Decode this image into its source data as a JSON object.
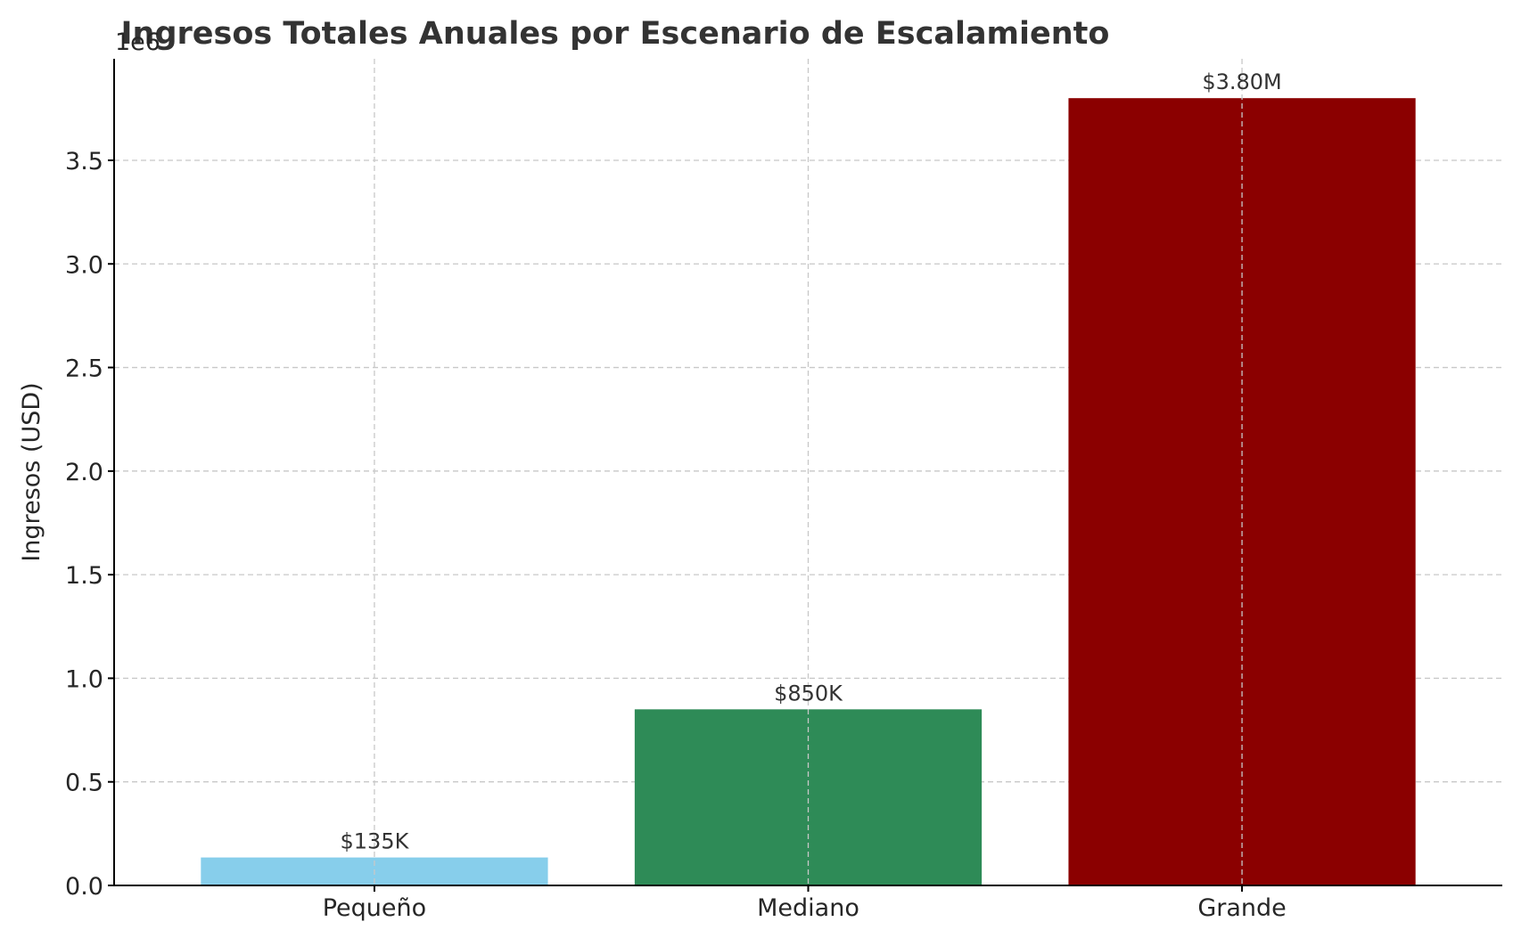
{
  "chart_data": {
    "type": "bar",
    "title": "Ingresos Totales Anuales por Escenario de Escalamiento",
    "xlabel": "",
    "ylabel": "Ingresos (USD)",
    "y_offset_label": "1e6",
    "categories": [
      "Pequeño",
      "Mediano",
      "Grande"
    ],
    "values": [
      135000,
      850000,
      3800000
    ],
    "value_labels": [
      "$135K",
      "$850K",
      "$3.80M"
    ],
    "colors": [
      "#87ceeb",
      "#2e8b57",
      "#8b0000"
    ],
    "ylim": [
      0,
      4000000
    ],
    "yticks": [
      0,
      500000,
      1000000,
      1500000,
      2000000,
      2500000,
      3000000,
      3500000
    ],
    "ytick_labels": [
      "0.0",
      "0.5",
      "1.0",
      "1.5",
      "2.0",
      "2.5",
      "3.0",
      "3.5"
    ],
    "grid": true,
    "legend": false
  }
}
